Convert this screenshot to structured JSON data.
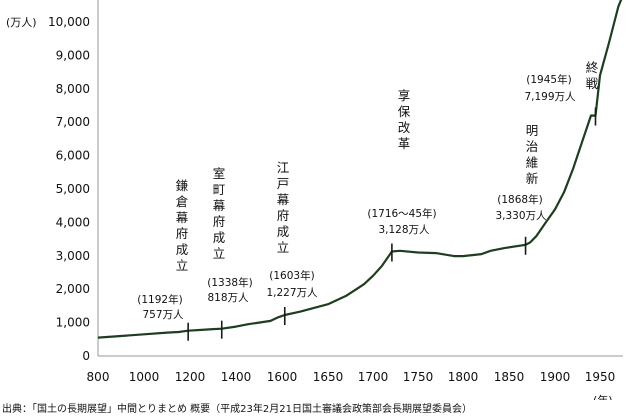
{
  "chart_data": {
    "type": "line",
    "title": "",
    "xlabel": "(年)",
    "ylabel": "(万人)",
    "xlim": [
      800,
      1975
    ],
    "ylim": [
      0,
      10800
    ],
    "x_ticks": [
      "800",
      "1000",
      "1200",
      "1400",
      "1600",
      "1650",
      "1700",
      "1750",
      "1800",
      "1850",
      "1900",
      "1950"
    ],
    "y_ticks": [
      "0",
      "1,000",
      "2,000",
      "3,000",
      "4,000",
      "5,000",
      "6,000",
      "7,000",
      "8,000",
      "9,000",
      "10,000"
    ],
    "grid": false,
    "line_color": "#1f3d1f",
    "series": [
      {
        "points": [
          [
            800,
            551
          ],
          [
            900,
            600
          ],
          [
            1000,
            650
          ],
          [
            1100,
            700
          ],
          [
            1150,
            720
          ],
          [
            1192,
            757
          ],
          [
            1250,
            780
          ],
          [
            1300,
            805
          ],
          [
            1338,
            818
          ],
          [
            1400,
            880
          ],
          [
            1450,
            950
          ],
          [
            1500,
            1000
          ],
          [
            1550,
            1050
          ],
          [
            1580,
            1150
          ],
          [
            1603,
            1227
          ],
          [
            1620,
            1330
          ],
          [
            1650,
            1550
          ],
          [
            1670,
            1800
          ],
          [
            1690,
            2150
          ],
          [
            1700,
            2400
          ],
          [
            1710,
            2700
          ],
          [
            1721,
            3128
          ],
          [
            1730,
            3150
          ],
          [
            1750,
            3100
          ],
          [
            1770,
            3080
          ],
          [
            1790,
            2990
          ],
          [
            1800,
            2990
          ],
          [
            1820,
            3050
          ],
          [
            1830,
            3150
          ],
          [
            1845,
            3230
          ],
          [
            1868,
            3330
          ],
          [
            1873,
            3400
          ],
          [
            1880,
            3600
          ],
          [
            1890,
            4000
          ],
          [
            1900,
            4390
          ],
          [
            1910,
            4900
          ],
          [
            1920,
            5600
          ],
          [
            1930,
            6400
          ],
          [
            1940,
            7200
          ],
          [
            1945,
            7199
          ],
          [
            1950,
            8400
          ],
          [
            1960,
            9400
          ],
          [
            1970,
            10467
          ],
          [
            1975,
            10800
          ]
        ]
      }
    ],
    "events": [
      {
        "label": "鎌倉幕府成立",
        "year_label": "(1192年)",
        "pop_label": "757万人",
        "x": 1192,
        "y": 757
      },
      {
        "label": "室町幕府成立",
        "year_label": "(1338年)",
        "pop_label": "818万人",
        "x": 1338,
        "y": 818
      },
      {
        "label": "江戸幕府成立",
        "year_label": "(1603年)",
        "pop_label": "1,227万人",
        "x": 1603,
        "y": 1227
      },
      {
        "label": "享保改革",
        "year_label": "(1716～45年)",
        "pop_label": "3,128万人",
        "x": 1721,
        "y": 3128
      },
      {
        "label": "明治維新",
        "year_label": "(1868年)",
        "pop_label": "3,330万人",
        "x": 1868,
        "y": 3330
      },
      {
        "label": "終戦",
        "year_label": "(1945年)",
        "pop_label": "7,199万人",
        "x": 1945,
        "y": 7199
      }
    ]
  },
  "source": "出典：「国土の長期展望」中間とりまとめ 概要（平成23年2月21日国土審議会政策部会長期展望委員会）"
}
